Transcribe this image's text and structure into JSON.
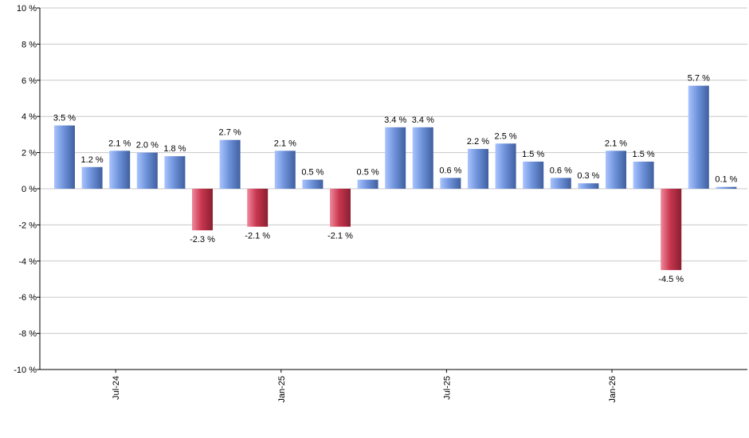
{
  "chart_data": {
    "type": "bar",
    "title": "",
    "xlabel": "",
    "ylabel": "",
    "ylim": [
      -10,
      10
    ],
    "yticks": [
      -10,
      -8,
      -6,
      -4,
      -2,
      0,
      2,
      4,
      6,
      8,
      10
    ],
    "ytick_labels": [
      "-10 %",
      "-8 %",
      "-6 %",
      "-4 %",
      "-2 %",
      "0 %",
      "2 %",
      "4 %",
      "6 %",
      "8 %",
      "10 %"
    ],
    "grid": true,
    "legend": "none",
    "x_tick_labels": [
      {
        "label": "Jul-24",
        "index": 2
      },
      {
        "label": "Jan-25",
        "index": 8
      },
      {
        "label": "Jul-25",
        "index": 14
      },
      {
        "label": "Jan-26",
        "index": 20
      }
    ],
    "values": [
      3.5,
      1.2,
      2.1,
      2.0,
      1.8,
      -2.3,
      2.7,
      -2.1,
      2.1,
      0.5,
      -2.1,
      0.5,
      3.4,
      3.4,
      0.6,
      2.2,
      2.5,
      1.5,
      0.6,
      0.3,
      2.1,
      1.5,
      -4.5,
      5.7,
      0.1
    ],
    "data_labels": [
      "3.5 %",
      "1.2 %",
      "2.1 %",
      "2.0 %",
      "1.8 %",
      "-2.3 %",
      "2.7 %",
      "-2.1 %",
      "2.1 %",
      "0.5 %",
      "-2.1 %",
      "0.5 %",
      "3.4 %",
      "3.4 %",
      "0.6 %",
      "2.2 %",
      "2.5 %",
      "1.5 %",
      "0.6 %",
      "0.3 %",
      "2.1 %",
      "1.5 %",
      "-4.5 %",
      "5.7 %",
      "0.1 %"
    ],
    "colors": {
      "positive_light": "#a9c4ff",
      "positive_mid": "#6f93db",
      "positive_dark": "#3f5f9f",
      "negative_light": "#f08a9c",
      "negative_mid": "#c8364f",
      "negative_dark": "#8a1f30",
      "grid": "#c8c8c8",
      "axis": "#000000"
    }
  }
}
